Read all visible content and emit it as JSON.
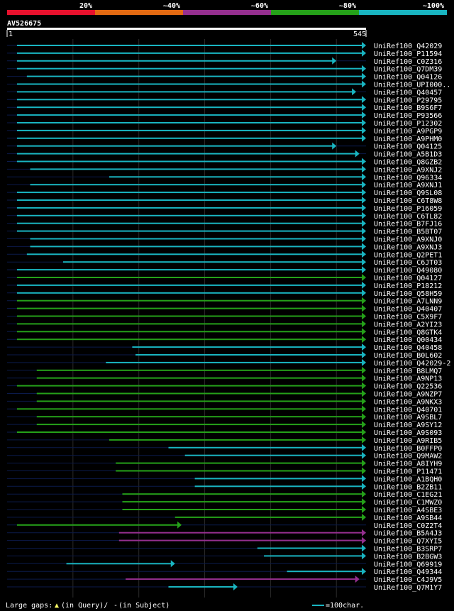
{
  "chart_data": {
    "type": "alignment-overview",
    "query": {
      "name": "AV526675",
      "length": 545,
      "start_label": "1",
      "end_label": "545"
    },
    "identity_scale": [
      {
        "label": "20%",
        "color": "#e8112d"
      },
      {
        "label": "~40%",
        "color": "#e36a12"
      },
      {
        "label": "~60%",
        "color": "#952f8f"
      },
      {
        "label": "~80%",
        "color": "#25a119"
      },
      {
        "label": "~100%",
        "color": "#19b5c1"
      }
    ],
    "hits": [
      {
        "name": "UniRef100_Q42029",
        "start": 15,
        "end": 545,
        "color": "cyan"
      },
      {
        "name": "UniRef100_P11594",
        "start": 15,
        "end": 545,
        "color": "cyan"
      },
      {
        "name": "UniRef100_C0Z316",
        "start": 15,
        "end": 500,
        "color": "cyan"
      },
      {
        "name": "UniRef100_Q7DM39",
        "start": 15,
        "end": 545,
        "color": "cyan"
      },
      {
        "name": "UniRef100_Q04126",
        "start": 30,
        "end": 545,
        "color": "cyan"
      },
      {
        "name": "UniRef100_UPI000..",
        "start": 15,
        "end": 545,
        "color": "cyan"
      },
      {
        "name": "UniRef100_Q40457",
        "start": 15,
        "end": 530,
        "color": "cyan"
      },
      {
        "name": "UniRef100_P29795",
        "start": 15,
        "end": 545,
        "color": "cyan"
      },
      {
        "name": "UniRef100_B9S6F7",
        "start": 15,
        "end": 545,
        "color": "cyan"
      },
      {
        "name": "UniRef100_P93566",
        "start": 15,
        "end": 545,
        "color": "cyan"
      },
      {
        "name": "UniRef100_P12302",
        "start": 15,
        "end": 545,
        "color": "cyan"
      },
      {
        "name": "UniRef100_A9PGP9",
        "start": 15,
        "end": 545,
        "color": "cyan"
      },
      {
        "name": "UniRef100_A9PHM0",
        "start": 15,
        "end": 545,
        "color": "cyan"
      },
      {
        "name": "UniRef100_Q04125",
        "start": 15,
        "end": 500,
        "color": "cyan"
      },
      {
        "name": "UniRef100_A5B1D3",
        "start": 15,
        "end": 535,
        "color": "cyan"
      },
      {
        "name": "UniRef100_Q8GZB2",
        "start": 15,
        "end": 545,
        "color": "cyan"
      },
      {
        "name": "UniRef100_A9XNJ2",
        "start": 35,
        "end": 545,
        "color": "cyan"
      },
      {
        "name": "UniRef100_Q96334",
        "start": 155,
        "end": 545,
        "color": "cyan"
      },
      {
        "name": "UniRef100_A9XNJ1",
        "start": 35,
        "end": 545,
        "color": "cyan"
      },
      {
        "name": "UniRef100_Q9SL08",
        "start": 15,
        "end": 545,
        "color": "cyan"
      },
      {
        "name": "UniRef100_C6T8W8",
        "start": 15,
        "end": 545,
        "color": "cyan"
      },
      {
        "name": "UniRef100_P16059",
        "start": 15,
        "end": 545,
        "color": "cyan"
      },
      {
        "name": "UniRef100_C6TL82",
        "start": 15,
        "end": 545,
        "color": "cyan"
      },
      {
        "name": "UniRef100_B7FJ16",
        "start": 15,
        "end": 545,
        "color": "cyan"
      },
      {
        "name": "UniRef100_B5BT07",
        "start": 15,
        "end": 545,
        "color": "cyan"
      },
      {
        "name": "UniRef100_A9XNJ0",
        "start": 35,
        "end": 545,
        "color": "cyan"
      },
      {
        "name": "UniRef100_A9XNJ3",
        "start": 35,
        "end": 545,
        "color": "cyan"
      },
      {
        "name": "UniRef100_Q2PET1",
        "start": 30,
        "end": 545,
        "color": "cyan"
      },
      {
        "name": "UniRef100_C6JT03",
        "start": 85,
        "end": 545,
        "color": "cyan"
      },
      {
        "name": "UniRef100_Q49080",
        "start": 15,
        "end": 545,
        "color": "cyan"
      },
      {
        "name": "UniRef100_Q04127",
        "start": 15,
        "end": 545,
        "color": "green"
      },
      {
        "name": "UniRef100_P18212",
        "start": 15,
        "end": 545,
        "color": "cyan"
      },
      {
        "name": "UniRef100_Q58H59",
        "start": 15,
        "end": 545,
        "color": "cyan"
      },
      {
        "name": "UniRef100_A7LNN9",
        "start": 15,
        "end": 545,
        "color": "green"
      },
      {
        "name": "UniRef100_Q40407",
        "start": 15,
        "end": 545,
        "color": "green"
      },
      {
        "name": "UniRef100_C5X9F7",
        "start": 15,
        "end": 545,
        "color": "green"
      },
      {
        "name": "UniRef100_A2YI23",
        "start": 15,
        "end": 545,
        "color": "green"
      },
      {
        "name": "UniRef100_Q8GTK4",
        "start": 15,
        "end": 545,
        "color": "green"
      },
      {
        "name": "UniRef100_Q00434",
        "start": 15,
        "end": 545,
        "color": "green"
      },
      {
        "name": "UniRef100_Q40458",
        "start": 190,
        "end": 545,
        "color": "cyan"
      },
      {
        "name": "UniRef100_B0L602",
        "start": 195,
        "end": 545,
        "color": "cyan"
      },
      {
        "name": "UniRef100_Q42029-2",
        "start": 150,
        "end": 545,
        "color": "cyan"
      },
      {
        "name": "UniRef100_B8LMQ7",
        "start": 45,
        "end": 545,
        "color": "green"
      },
      {
        "name": "UniRef100_A9NP13",
        "start": 45,
        "end": 545,
        "color": "green"
      },
      {
        "name": "UniRef100_Q22536",
        "start": 15,
        "end": 545,
        "color": "green"
      },
      {
        "name": "UniRef100_A9NZP7",
        "start": 45,
        "end": 545,
        "color": "green"
      },
      {
        "name": "UniRef100_A9NKX3",
        "start": 45,
        "end": 545,
        "color": "green"
      },
      {
        "name": "UniRef100_Q40701",
        "start": 15,
        "end": 545,
        "color": "green"
      },
      {
        "name": "UniRef100_A9SBL7",
        "start": 45,
        "end": 545,
        "color": "green"
      },
      {
        "name": "UniRef100_A9SY12",
        "start": 45,
        "end": 545,
        "color": "green"
      },
      {
        "name": "UniRef100_A9S093",
        "start": 15,
        "end": 545,
        "color": "green"
      },
      {
        "name": "UniRef100_A9RIB5",
        "start": 155,
        "end": 545,
        "color": "green"
      },
      {
        "name": "UniRef100_B0FFP0",
        "start": 245,
        "end": 545,
        "color": "cyan"
      },
      {
        "name": "UniRef100_Q9MAW2",
        "start": 270,
        "end": 545,
        "color": "cyan"
      },
      {
        "name": "UniRef100_A8IYH9",
        "start": 165,
        "end": 545,
        "color": "green"
      },
      {
        "name": "UniRef100_P11471",
        "start": 165,
        "end": 545,
        "color": "green"
      },
      {
        "name": "UniRef100_A1BQH0",
        "start": 285,
        "end": 545,
        "color": "cyan"
      },
      {
        "name": "UniRef100_B2ZB11",
        "start": 285,
        "end": 545,
        "color": "cyan"
      },
      {
        "name": "UniRef100_C1EG21",
        "start": 175,
        "end": 545,
        "color": "green"
      },
      {
        "name": "UniRef100_C1MWZ0",
        "start": 175,
        "end": 545,
        "color": "green"
      },
      {
        "name": "UniRef100_A4SBE3",
        "start": 175,
        "end": 545,
        "color": "green"
      },
      {
        "name": "UniRef100_A9SB44",
        "start": 255,
        "end": 545,
        "color": "green"
      },
      {
        "name": "UniRef100_C0Z2T4",
        "start": 15,
        "end": 265,
        "color": "green"
      },
      {
        "name": "UniRef100_B5A4J3",
        "start": 170,
        "end": 545,
        "color": "purple"
      },
      {
        "name": "UniRef100_Q7XYI5",
        "start": 170,
        "end": 545,
        "color": "purple"
      },
      {
        "name": "UniRef100_B3SRP7",
        "start": 380,
        "end": 545,
        "color": "cyan"
      },
      {
        "name": "UniRef100_B2BGW3",
        "start": 390,
        "end": 545,
        "color": "cyan"
      },
      {
        "name": "UniRef100_Q69919",
        "start": 90,
        "end": 255,
        "color": "cyan"
      },
      {
        "name": "UniRef100_Q49344",
        "start": 425,
        "end": 545,
        "color": "cyan"
      },
      {
        "name": "UniRef100_C4J9V5",
        "start": 180,
        "end": 535,
        "color": "purple"
      },
      {
        "name": "UniRef100_Q7M1Y7",
        "start": 245,
        "end": 350,
        "color": "cyan"
      }
    ],
    "legend": {
      "gaps_prefix": "Large gaps:",
      "gaps_query_symbol": "▲",
      "gaps_query_text": "(in Query)/",
      "gaps_subject_symbol": "-",
      "gaps_subject_text": "(in Subject)",
      "scale_text": "=100char."
    }
  }
}
